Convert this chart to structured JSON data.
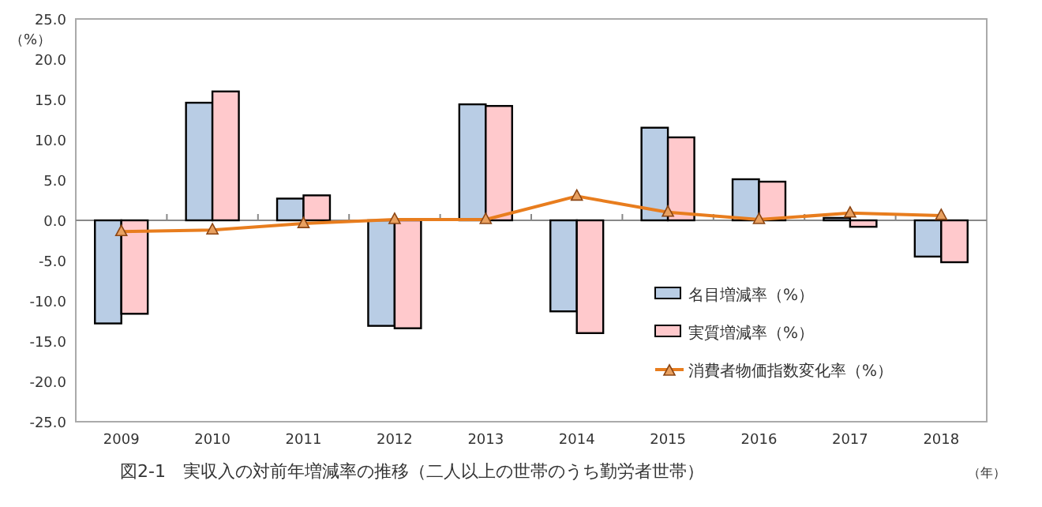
{
  "chart_data": {
    "type": "bar",
    "title": "図2-1　実収入の対前年増減率の推移（二人以上の世帯のうち勤労者世帯）",
    "ylabel": "（%）",
    "xlabel": "（年）",
    "categories": [
      "2009",
      "2010",
      "2011",
      "2012",
      "2013",
      "2014",
      "2015",
      "2016",
      "2017",
      "2018"
    ],
    "series": [
      {
        "name": "名目増減率（%）",
        "color": "#b9cde5",
        "values": [
          -12.8,
          14.6,
          2.7,
          -13.1,
          14.4,
          -11.3,
          11.5,
          5.1,
          0.3,
          -4.5
        ]
      },
      {
        "name": "実質増減率（%）",
        "color": "#ffc9cc",
        "values": [
          -11.6,
          16.0,
          3.1,
          -13.4,
          14.2,
          -14.0,
          10.3,
          4.8,
          -0.8,
          -5.2
        ]
      },
      {
        "name": "消費者物価指数変化率（%）",
        "type": "line",
        "color": "#e87d1e",
        "marker": "triangle",
        "values": [
          -1.4,
          -1.2,
          -0.4,
          0.1,
          0.1,
          3.0,
          1.0,
          0.1,
          0.9,
          0.6
        ]
      }
    ],
    "ylim": [
      -25,
      25
    ],
    "yticks": [
      {
        "value": -25,
        "label": "-25.0"
      },
      {
        "value": -20,
        "label": "-20.0"
      },
      {
        "value": -15,
        "label": "-15.0"
      },
      {
        "value": -10,
        "label": "-10.0"
      },
      {
        "value": -5,
        "label": "-5.0"
      },
      {
        "value": 0,
        "label": "0.0"
      },
      {
        "value": 5,
        "label": "5.0"
      },
      {
        "value": 10,
        "label": "10.0"
      },
      {
        "value": 15,
        "label": "15.0"
      },
      {
        "value": 20,
        "label": "20.0"
      },
      {
        "value": 25,
        "label": "25.0"
      }
    ],
    "legend": "bottom right"
  }
}
